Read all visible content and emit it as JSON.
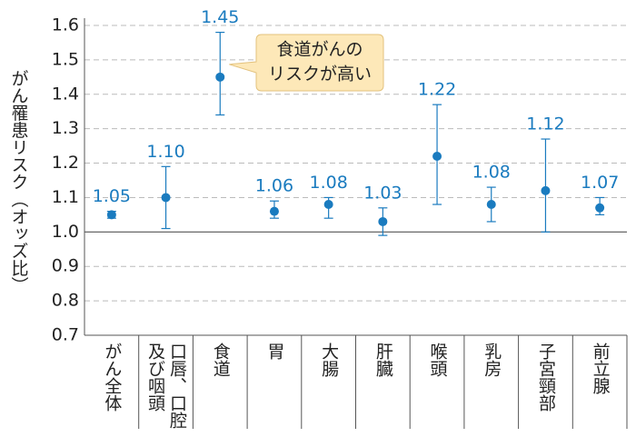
{
  "chart_data": {
    "type": "errorbar",
    "y_label": "がん罹患リスク（オッズ比）",
    "categories": [
      "がん全体",
      [
        "口唇、口腔",
        "及び咽頭"
      ],
      "食道",
      "胃",
      "大腸",
      "肝臓",
      "喉頭",
      "乳房",
      "子宮頸部",
      "前立腺"
    ],
    "series": [
      {
        "color": "#1a7bbf",
        "values": [
          1.05,
          1.1,
          1.45,
          1.06,
          1.08,
          1.03,
          1.22,
          1.08,
          1.12,
          1.07
        ],
        "value_labels": [
          "1.05",
          "1.10",
          "1.45",
          "1.06",
          "1.08",
          "1.03",
          "1.22",
          "1.08",
          "1.12",
          "1.07"
        ],
        "lower": [
          1.04,
          1.01,
          1.34,
          1.04,
          1.04,
          0.99,
          1.08,
          1.03,
          1.0,
          1.05
        ],
        "upper": [
          1.06,
          1.19,
          1.58,
          1.09,
          1.1,
          1.07,
          1.37,
          1.13,
          1.27,
          1.1
        ]
      }
    ],
    "ylim": [
      0.7,
      1.6
    ],
    "yticks": [
      0.7,
      0.8,
      0.9,
      {
        "value": 1,
        "label": "1.0"
      },
      1.1,
      1.2,
      1.3,
      1.4,
      1.5,
      1.6
    ],
    "grid": true,
    "reference_line": 1,
    "annotation": {
      "lines": [
        "食道がんの",
        "リスクが高い"
      ],
      "category": 2
    }
  }
}
